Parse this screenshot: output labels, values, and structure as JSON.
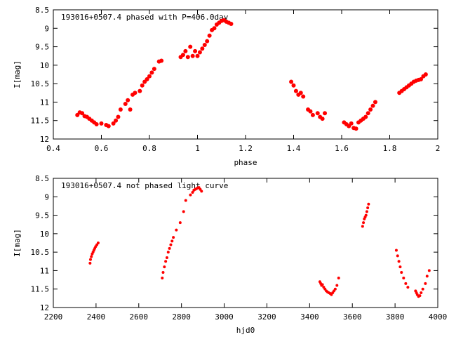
{
  "chart_data": [
    {
      "type": "scatter",
      "title": "193016+0507.4 phased with P=406.0day",
      "xlabel": "phase",
      "ylabel": "I[mag]",
      "xlim": [
        0.4,
        2.0
      ],
      "ylim": [
        8.5,
        12.0
      ],
      "y_inverted": true,
      "xticks": [
        0.4,
        0.6,
        0.8,
        1.0,
        1.2,
        1.4,
        1.6,
        1.8,
        2.0
      ],
      "xtick_labels": [
        "0.4",
        "0.6",
        "0.8",
        "1",
        "1.2",
        "1.4",
        "1.6",
        "1.8",
        "2"
      ],
      "yticks": [
        8.5,
        9.0,
        9.5,
        10.0,
        10.5,
        11.0,
        11.5,
        12.0
      ],
      "ytick_labels": [
        "8.5",
        "9",
        "9.5",
        "10",
        "10.5",
        "11",
        "11.5",
        "12"
      ],
      "grid": false,
      "marker": "filled-circle",
      "color": "#ff0000",
      "x": [
        0.5,
        0.51,
        0.52,
        0.53,
        0.54,
        0.55,
        0.56,
        0.57,
        0.58,
        0.6,
        0.62,
        0.63,
        0.65,
        0.66,
        0.67,
        0.68,
        0.7,
        0.71,
        0.72,
        0.73,
        0.74,
        0.76,
        0.77,
        0.78,
        0.79,
        0.8,
        0.81,
        0.82,
        0.84,
        0.85,
        0.93,
        0.94,
        0.95,
        0.96,
        0.97,
        0.98,
        0.99,
        1.0,
        1.01,
        1.02,
        1.03,
        1.04,
        1.05,
        1.06,
        1.07,
        1.08,
        1.09,
        1.1,
        1.11,
        1.12,
        1.13,
        1.14,
        1.39,
        1.4,
        1.41,
        1.42,
        1.43,
        1.44,
        1.46,
        1.47,
        1.48,
        1.5,
        1.51,
        1.52,
        1.53,
        1.61,
        1.62,
        1.63,
        1.64,
        1.65,
        1.66,
        1.67,
        1.68,
        1.69,
        1.7,
        1.71,
        1.72,
        1.73,
        1.74,
        1.84,
        1.85,
        1.86,
        1.87,
        1.88,
        1.89,
        1.9,
        1.91,
        1.92,
        1.93,
        1.94,
        1.95
      ],
      "y": [
        11.35,
        11.28,
        11.3,
        11.38,
        11.4,
        11.45,
        11.5,
        11.55,
        11.6,
        11.58,
        11.62,
        11.65,
        11.58,
        11.5,
        11.4,
        11.2,
        11.05,
        10.95,
        11.2,
        10.8,
        10.75,
        10.7,
        10.55,
        10.45,
        10.38,
        10.3,
        10.2,
        10.1,
        9.9,
        9.88,
        9.78,
        9.72,
        9.62,
        9.78,
        9.5,
        9.75,
        9.62,
        9.75,
        9.65,
        9.55,
        9.45,
        9.35,
        9.2,
        9.05,
        9.0,
        8.9,
        8.85,
        8.8,
        8.78,
        8.82,
        8.85,
        8.88,
        10.45,
        10.55,
        10.7,
        10.8,
        10.75,
        10.85,
        11.2,
        11.25,
        11.35,
        11.3,
        11.4,
        11.45,
        11.3,
        11.55,
        11.6,
        11.65,
        11.58,
        11.7,
        11.72,
        11.55,
        11.5,
        11.45,
        11.4,
        11.3,
        11.2,
        11.1,
        11.0,
        10.75,
        10.7,
        10.65,
        10.6,
        10.55,
        10.5,
        10.45,
        10.42,
        10.4,
        10.38,
        10.3,
        10.25
      ]
    },
    {
      "type": "scatter",
      "title": "193016+0507.4 not phased light curve",
      "xlabel": "hjd0",
      "ylabel": "I[mag]",
      "xlim": [
        2200,
        4000
      ],
      "ylim": [
        8.5,
        12.0
      ],
      "y_inverted": true,
      "xticks": [
        2200,
        2400,
        2600,
        2800,
        3000,
        3200,
        3400,
        3600,
        3800,
        4000
      ],
      "xtick_labels": [
        "2200",
        "2400",
        "2600",
        "2800",
        "3000",
        "3200",
        "3400",
        "3600",
        "3800",
        "4000"
      ],
      "yticks": [
        8.5,
        9.0,
        9.5,
        10.0,
        10.5,
        11.0,
        11.5,
        12.0
      ],
      "ytick_labels": [
        "8.5",
        "9",
        "9.5",
        "10",
        "10.5",
        "11",
        "11.5",
        "12"
      ],
      "grid": false,
      "marker": "filled-circle",
      "color": "#ff0000",
      "x": [
        2372,
        2374,
        2378,
        2382,
        2386,
        2390,
        2394,
        2398,
        2404,
        2410,
        2710,
        2714,
        2720,
        2726,
        2732,
        2738,
        2744,
        2750,
        2756,
        2762,
        2776,
        2794,
        2810,
        2820,
        2842,
        2852,
        2858,
        2864,
        2870,
        2876,
        2882,
        2888,
        2894,
        3448,
        3452,
        3456,
        3460,
        3466,
        3472,
        3478,
        3484,
        3490,
        3496,
        3502,
        3508,
        3514,
        3520,
        3528,
        3536,
        3648,
        3652,
        3656,
        3660,
        3664,
        3668,
        3672,
        3676,
        3806,
        3812,
        3818,
        3824,
        3830,
        3840,
        3850,
        3860,
        3896,
        3900,
        3904,
        3910,
        3916,
        3922,
        3930,
        3942,
        3950,
        3960
      ],
      "y": [
        10.8,
        10.7,
        10.62,
        10.55,
        10.5,
        10.45,
        10.4,
        10.35,
        10.3,
        10.25,
        11.2,
        11.05,
        10.9,
        10.75,
        10.65,
        10.5,
        10.4,
        10.3,
        10.2,
        10.1,
        9.9,
        9.7,
        9.4,
        9.1,
        8.95,
        8.88,
        8.82,
        8.8,
        8.78,
        8.76,
        8.75,
        8.8,
        8.85,
        11.3,
        11.35,
        11.4,
        11.38,
        11.45,
        11.5,
        11.55,
        11.58,
        11.6,
        11.62,
        11.65,
        11.6,
        11.55,
        11.5,
        11.4,
        11.2,
        9.8,
        9.7,
        9.6,
        9.55,
        9.5,
        9.4,
        9.3,
        9.2,
        10.45,
        10.6,
        10.75,
        10.9,
        11.05,
        11.2,
        11.35,
        11.45,
        11.55,
        11.6,
        11.65,
        11.7,
        11.68,
        11.6,
        11.5,
        11.35,
        11.15,
        11.0
      ]
    }
  ]
}
